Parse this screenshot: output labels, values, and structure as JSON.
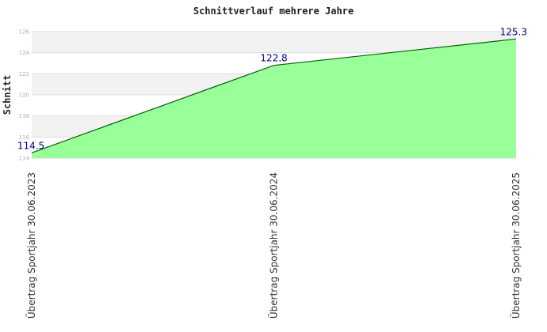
{
  "chart_data": {
    "type": "area",
    "title": "Schnittverlauf mehrere Jahre",
    "ylabel": "Schnitt",
    "xlabel": "",
    "categories": [
      "Übertrag Sportjahr 30.06.2023",
      "Übertrag Sportjahr 30.06.2024",
      "Übertrag Sportjahr 30.06.2025"
    ],
    "values": [
      114.5,
      122.8,
      125.3
    ],
    "data_labels": [
      "114.5",
      "122.8",
      "125.3"
    ],
    "ylim": [
      114,
      126
    ],
    "yticks": [
      114,
      116,
      118,
      120,
      122,
      124,
      126
    ],
    "ytick_labels": [
      "114",
      "116",
      "118",
      "120",
      "122",
      "124",
      "126"
    ],
    "grid": true,
    "legend": "none",
    "colors": {
      "fill": "#99ff99",
      "line": "#006400",
      "label": "#000080",
      "band_light": "#f2f2f2",
      "band_white": "#ffffff",
      "grid": "#dddddd"
    }
  }
}
